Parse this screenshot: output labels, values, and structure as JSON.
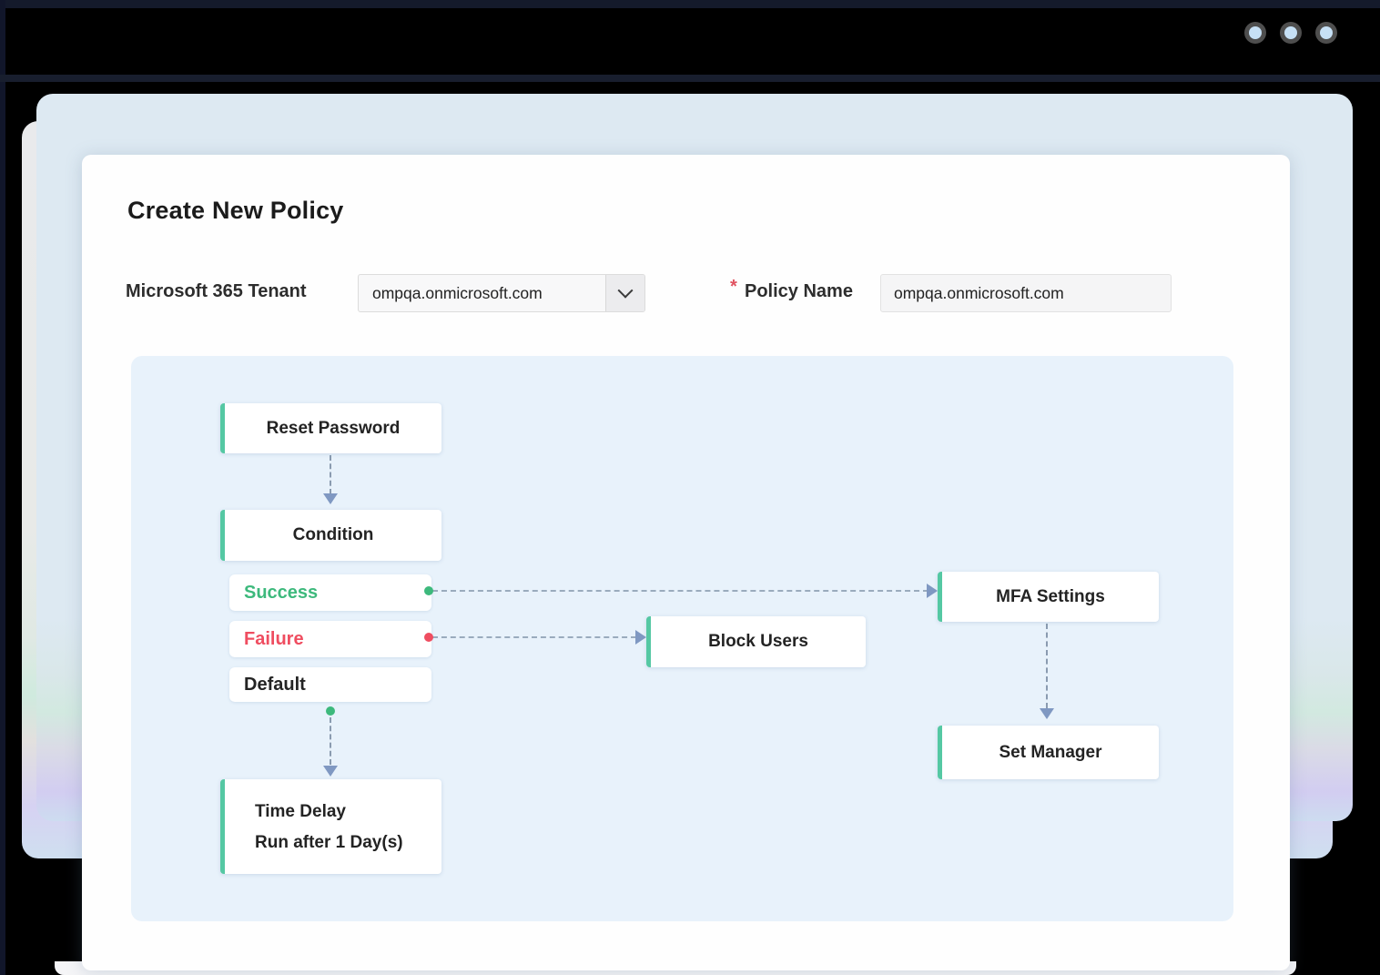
{
  "page": {
    "title": "Create New Policy"
  },
  "form": {
    "tenant_label": "Microsoft 365 Tenant",
    "tenant_value": "ompqa.onmicrosoft.com",
    "required_marker": "*",
    "policy_name_label": "Policy Name",
    "policy_name_value": "ompqa.onmicrosoft.com"
  },
  "flowchart": {
    "nodes": {
      "reset_password": "Reset Password",
      "condition": "Condition",
      "success": "Success",
      "failure": "Failure",
      "default": "Default",
      "block_users": "Block Users",
      "mfa_settings": "MFA Settings",
      "set_manager": "Set Manager",
      "time_delay_title": "Time Delay",
      "time_delay_subtitle": "Run after 1 Day(s)"
    }
  },
  "colors": {
    "accent_green": "#55c8a3",
    "success_text": "#3db97c",
    "failure_text": "#ef4d60",
    "connector": "#9aabbd",
    "arrowhead": "#7f98c2",
    "panel_blue": "#dde9f2",
    "flow_background": "#e8f2fb",
    "topbar_black": "#000000",
    "window_dot_blue": "#c6e0f5"
  }
}
